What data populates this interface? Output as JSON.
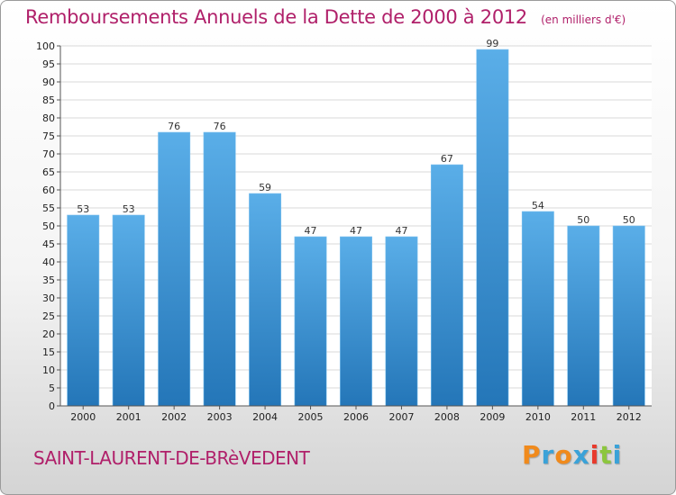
{
  "title": "Remboursements Annuels de la Dette de 2000 à 2012",
  "unit": "(en milliers d'€)",
  "city": "SAINT-LAURENT-DE-BRèVEDENT",
  "logo": {
    "text": "Proxiti",
    "letters": [
      "P",
      "r",
      "o",
      "x",
      "i",
      "t",
      "i"
    ],
    "colors": [
      "#f08a1c",
      "#3aa2d8",
      "#f08a1c",
      "#3aa2d8",
      "#e83a2c",
      "#8cc63e",
      "#3aa2d8"
    ]
  },
  "colors": {
    "title": "#b0206a",
    "bar_top": "#5aaee8",
    "bar_bottom": "#2476b8"
  },
  "chart_data": {
    "type": "bar",
    "categories": [
      "2000",
      "2001",
      "2002",
      "2003",
      "2004",
      "2005",
      "2006",
      "2007",
      "2008",
      "2009",
      "2010",
      "2011",
      "2012"
    ],
    "values": [
      53,
      53,
      76,
      76,
      59,
      47,
      47,
      47,
      67,
      99,
      54,
      50,
      50
    ],
    "ylim": [
      0,
      100
    ],
    "yticks": [
      0,
      5,
      10,
      15,
      20,
      25,
      30,
      35,
      40,
      45,
      50,
      55,
      60,
      65,
      70,
      75,
      80,
      85,
      90,
      95,
      100
    ],
    "grid": true
  }
}
